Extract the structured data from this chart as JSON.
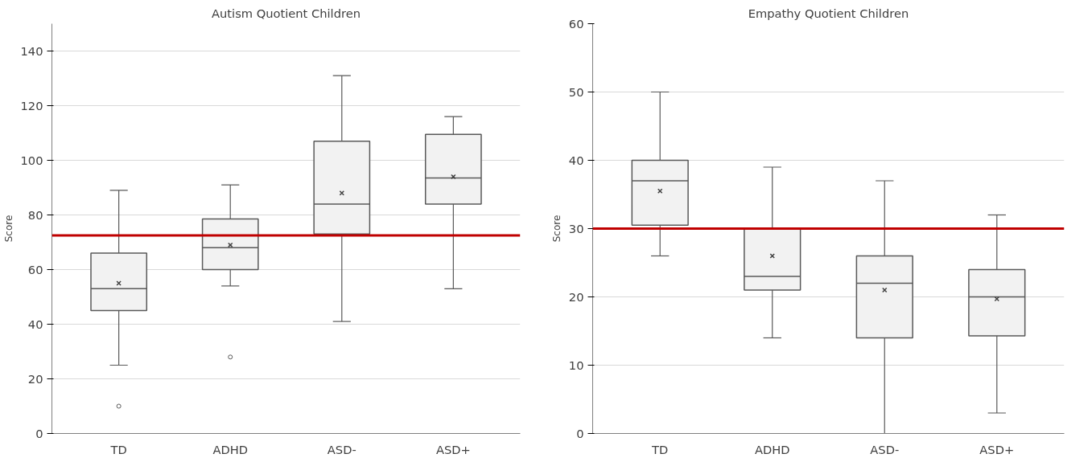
{
  "chart_data": [
    {
      "type": "box",
      "title": "Autism Quotient Children",
      "ylabel": "Score",
      "categories": [
        "TD",
        "ADHD",
        "ASD-",
        "ASD+"
      ],
      "boxes": [
        {
          "low": 25,
          "q1": 45,
          "median": 53,
          "q3": 66,
          "high": 89,
          "mean": 55,
          "outliers": [
            10
          ]
        },
        {
          "low": 54,
          "q1": 60,
          "median": 68,
          "q3": 78.5,
          "high": 91,
          "mean": 69,
          "outliers": [
            28
          ]
        },
        {
          "low": 41,
          "q1": 73,
          "median": 84,
          "q3": 107,
          "high": 131,
          "mean": 88
        },
        {
          "low": 53,
          "q1": 84,
          "median": 93.5,
          "q3": 109.5,
          "high": 116,
          "mean": 94
        }
      ],
      "color": "#f2f2f2",
      "ylim": [
        0,
        150
      ],
      "yticks": [
        0,
        20,
        40,
        60,
        80,
        100,
        120,
        140
      ],
      "grid": "y",
      "ref_lines": [
        {
          "axis": "y",
          "value": 72.5,
          "color": "#c00000"
        }
      ]
    },
    {
      "type": "box",
      "title": "Empathy Quotient Children",
      "ylabel": "Score",
      "categories": [
        "TD",
        "ADHD",
        "ASD-",
        "ASD+"
      ],
      "boxes": [
        {
          "low": 26,
          "q1": 30.5,
          "median": 37,
          "q3": 40,
          "high": 50,
          "mean": 35.5
        },
        {
          "low": 14,
          "q1": 21,
          "median": 23,
          "q3": 30,
          "high": 39,
          "mean": 26
        },
        {
          "low": 0,
          "q1": 14,
          "median": 22,
          "q3": 26,
          "high": 37,
          "mean": 21
        },
        {
          "low": 3,
          "q1": 14.3,
          "median": 20,
          "q3": 24,
          "high": 32,
          "mean": 19.7
        }
      ],
      "color": "#f2f2f2",
      "ylim": [
        0,
        60
      ],
      "yticks": [
        0,
        10,
        20,
        30,
        40,
        50,
        60
      ],
      "grid": "y",
      "ref_lines": [
        {
          "axis": "y",
          "value": 30,
          "color": "#c00000"
        }
      ]
    }
  ]
}
